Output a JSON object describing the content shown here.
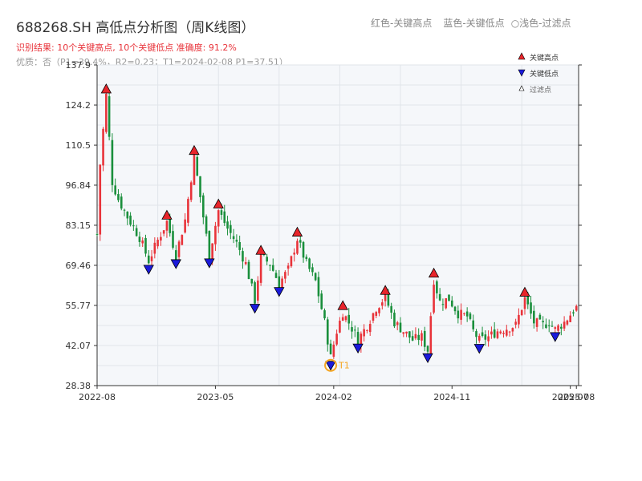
{
  "header": {
    "title": "688268.SH 高低点分析图（周K线图）",
    "legend_red": "红色-关键高点",
    "legend_blue": "蓝色-关键低点",
    "legend_light": "○浅色-过滤点",
    "result_line": "识别结果: 10个关键高点, 10个关键低点  准确度: 91.2%",
    "quality_line": "优质：否（P1=39.4%，R2=0.23；T1=2024-02-08 P1=37.51）"
  },
  "colors": {
    "up": "#e8333a",
    "down": "#1a8f3c",
    "high_marker": "#e8252b",
    "low_marker": "#1a1adb",
    "t1": "#f5a623",
    "plot_bg": "#f5f7fa",
    "grid": "#e1e5ea"
  },
  "chart_data": {
    "type": "candlestick",
    "ylim": [
      28.38,
      137.9
    ],
    "yticks": [
      "137.9",
      "124.2",
      "110.5",
      "96.84",
      "83.15",
      "69.46",
      "55.77",
      "42.07",
      "28.38"
    ],
    "xticks": [
      {
        "label": "2022-08",
        "week": 0
      },
      {
        "label": "2023-05",
        "week": 39
      },
      {
        "label": "2024-02",
        "week": 78
      },
      {
        "label": "2024-11",
        "week": 117
      },
      {
        "label": "2025-07",
        "week": 156
      },
      {
        "label": "2025-08",
        "week": 158
      }
    ],
    "legend": {
      "high": "关键高点",
      "low": "关键低点",
      "filtered": "过滤点"
    },
    "t1_label": "T1",
    "t1": {
      "week": 77,
      "price": 37.5
    },
    "key_highs": [
      {
        "week": 3,
        "price": 127.5
      },
      {
        "week": 23,
        "price": 84.4
      },
      {
        "week": 32,
        "price": 106.5
      },
      {
        "week": 40,
        "price": 88.2
      },
      {
        "week": 54,
        "price": 72.4
      },
      {
        "week": 66,
        "price": 78.6
      },
      {
        "week": 81,
        "price": 53.5
      },
      {
        "week": 95,
        "price": 58.7
      },
      {
        "week": 111,
        "price": 64.6
      },
      {
        "week": 141,
        "price": 58.1
      }
    ],
    "key_lows": [
      {
        "week": 17,
        "price": 70.3
      },
      {
        "week": 26,
        "price": 72.2
      },
      {
        "week": 37,
        "price": 72.5
      },
      {
        "week": 52,
        "price": 57.0
      },
      {
        "week": 60,
        "price": 62.7
      },
      {
        "week": 77,
        "price": 37.5
      },
      {
        "week": 86,
        "price": 43.4
      },
      {
        "week": 109,
        "price": 40.1
      },
      {
        "week": 126,
        "price": 43.3
      },
      {
        "week": 151,
        "price": 47.3
      }
    ],
    "anchors": [
      [
        0,
        80
      ],
      [
        1,
        104
      ],
      [
        3,
        127.5
      ],
      [
        5,
        98
      ],
      [
        7,
        92
      ],
      [
        10,
        86
      ],
      [
        14,
        79
      ],
      [
        17,
        71
      ],
      [
        20,
        78
      ],
      [
        23,
        84.4
      ],
      [
        26,
        73
      ],
      [
        29,
        85
      ],
      [
        32,
        106.5
      ],
      [
        35,
        86
      ],
      [
        37,
        73
      ],
      [
        40,
        88.2
      ],
      [
        43,
        82
      ],
      [
        46,
        77
      ],
      [
        49,
        70
      ],
      [
        52,
        57.5
      ],
      [
        54,
        72.4
      ],
      [
        57,
        70
      ],
      [
        60,
        63.2
      ],
      [
        63,
        68
      ],
      [
        66,
        78.6
      ],
      [
        69,
        70
      ],
      [
        72,
        64
      ],
      [
        75,
        50
      ],
      [
        77,
        38
      ],
      [
        79,
        47
      ],
      [
        81,
        53.5
      ],
      [
        84,
        48
      ],
      [
        86,
        44
      ],
      [
        89,
        49
      ],
      [
        92,
        55
      ],
      [
        95,
        58.7
      ],
      [
        98,
        50
      ],
      [
        101,
        47
      ],
      [
        104,
        44
      ],
      [
        107,
        45
      ],
      [
        109,
        40.5
      ],
      [
        111,
        64.6
      ],
      [
        113,
        57
      ],
      [
        116,
        58
      ],
      [
        119,
        53
      ],
      [
        122,
        52
      ],
      [
        124,
        47
      ],
      [
        126,
        43.8
      ],
      [
        129,
        45
      ],
      [
        132,
        47
      ],
      [
        135,
        48
      ],
      [
        138,
        49
      ],
      [
        141,
        58.1
      ],
      [
        144,
        50
      ],
      [
        147,
        49
      ],
      [
        149,
        50
      ],
      [
        151,
        47.5
      ],
      [
        154,
        50
      ],
      [
        157,
        54
      ],
      [
        158,
        55
      ]
    ]
  }
}
